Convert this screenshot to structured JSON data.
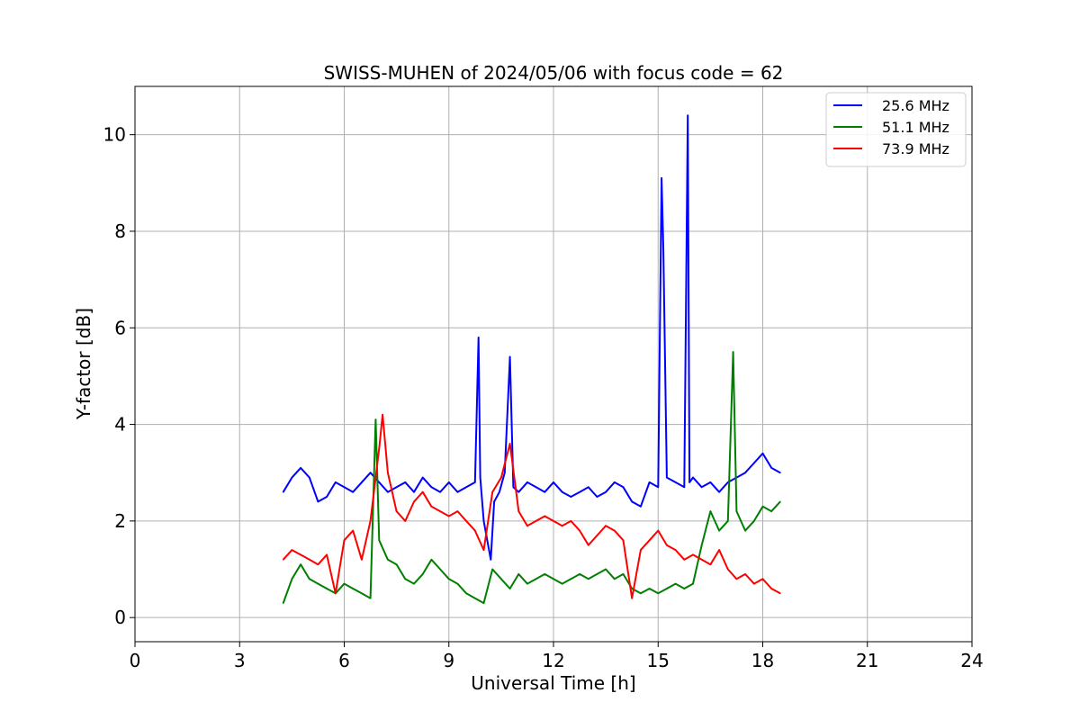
{
  "chart_data": {
    "type": "line",
    "title": "SWISS-MUHEN of 2024/05/06 with focus code = 62",
    "xlabel": "Universal Time [h]",
    "ylabel": "Y-factor [dB]",
    "xlim": [
      0,
      24
    ],
    "ylim": [
      -0.5,
      11
    ],
    "xticks": [
      0,
      3,
      6,
      9,
      12,
      15,
      18,
      21,
      24
    ],
    "yticks": [
      0,
      2,
      4,
      6,
      8,
      10
    ],
    "grid": true,
    "legend_position": "top-right",
    "series": [
      {
        "name": "25.6 MHz",
        "color": "#0000ff",
        "x": [
          4.25,
          4.5,
          4.75,
          5.0,
          5.25,
          5.5,
          5.75,
          6.0,
          6.25,
          6.5,
          6.75,
          7.0,
          7.25,
          7.5,
          7.75,
          8.0,
          8.25,
          8.5,
          8.75,
          9.0,
          9.25,
          9.5,
          9.75,
          9.85,
          9.9,
          10.0,
          10.2,
          10.3,
          10.45,
          10.6,
          10.75,
          10.85,
          11.0,
          11.25,
          11.5,
          11.75,
          12.0,
          12.25,
          12.5,
          12.75,
          13.0,
          13.25,
          13.5,
          13.75,
          14.0,
          14.25,
          14.5,
          14.75,
          15.0,
          15.1,
          15.15,
          15.25,
          15.5,
          15.75,
          15.85,
          15.9,
          16.0,
          16.25,
          16.5,
          16.75,
          17.0,
          17.25,
          17.5,
          17.75,
          18.0,
          18.25,
          18.5
        ],
        "y": [
          2.6,
          2.9,
          3.1,
          2.9,
          2.4,
          2.5,
          2.8,
          2.7,
          2.6,
          2.8,
          3.0,
          2.8,
          2.6,
          2.7,
          2.8,
          2.6,
          2.9,
          2.7,
          2.6,
          2.8,
          2.6,
          2.7,
          2.8,
          5.8,
          2.9,
          2.0,
          1.2,
          2.4,
          2.6,
          3.0,
          5.4,
          2.7,
          2.6,
          2.8,
          2.7,
          2.6,
          2.8,
          2.6,
          2.5,
          2.6,
          2.7,
          2.5,
          2.6,
          2.8,
          2.7,
          2.4,
          2.3,
          2.8,
          2.7,
          9.1,
          7.6,
          2.9,
          2.8,
          2.7,
          10.4,
          2.8,
          2.9,
          2.7,
          2.8,
          2.6,
          2.8,
          2.9,
          3.0,
          3.2,
          3.4,
          3.1,
          3.0
        ]
      },
      {
        "name": "51.1 MHz",
        "color": "#008000",
        "x": [
          4.25,
          4.5,
          4.75,
          5.0,
          5.25,
          5.5,
          5.75,
          6.0,
          6.25,
          6.5,
          6.75,
          6.9,
          7.0,
          7.25,
          7.5,
          7.75,
          8.0,
          8.25,
          8.5,
          8.75,
          9.0,
          9.25,
          9.5,
          9.75,
          10.0,
          10.25,
          10.5,
          10.75,
          11.0,
          11.25,
          11.5,
          11.75,
          12.0,
          12.25,
          12.5,
          12.75,
          13.0,
          13.25,
          13.5,
          13.75,
          14.0,
          14.25,
          14.5,
          14.75,
          15.0,
          15.25,
          15.5,
          15.75,
          16.0,
          16.25,
          16.5,
          16.75,
          17.0,
          17.15,
          17.25,
          17.5,
          17.75,
          18.0,
          18.25,
          18.5
        ],
        "y": [
          0.3,
          0.8,
          1.1,
          0.8,
          0.7,
          0.6,
          0.5,
          0.7,
          0.6,
          0.5,
          0.4,
          4.1,
          1.6,
          1.2,
          1.1,
          0.8,
          0.7,
          0.9,
          1.2,
          1.0,
          0.8,
          0.7,
          0.5,
          0.4,
          0.3,
          1.0,
          0.8,
          0.6,
          0.9,
          0.7,
          0.8,
          0.9,
          0.8,
          0.7,
          0.8,
          0.9,
          0.8,
          0.9,
          1.0,
          0.8,
          0.9,
          0.6,
          0.5,
          0.6,
          0.5,
          0.6,
          0.7,
          0.6,
          0.7,
          1.5,
          2.2,
          1.8,
          2.0,
          5.5,
          2.2,
          1.8,
          2.0,
          2.3,
          2.2,
          2.4
        ]
      },
      {
        "name": "73.9 MHz",
        "color": "#ff0000",
        "x": [
          4.25,
          4.5,
          4.75,
          5.0,
          5.25,
          5.5,
          5.75,
          6.0,
          6.25,
          6.5,
          6.75,
          7.0,
          7.1,
          7.25,
          7.5,
          7.75,
          8.0,
          8.25,
          8.5,
          8.75,
          9.0,
          9.25,
          9.5,
          9.75,
          10.0,
          10.25,
          10.5,
          10.75,
          11.0,
          11.25,
          11.5,
          11.75,
          12.0,
          12.25,
          12.5,
          12.75,
          13.0,
          13.25,
          13.5,
          13.75,
          14.0,
          14.25,
          14.5,
          14.75,
          15.0,
          15.25,
          15.5,
          15.75,
          16.0,
          16.25,
          16.5,
          16.75,
          17.0,
          17.25,
          17.5,
          17.75,
          18.0,
          18.25,
          18.5
        ],
        "y": [
          1.2,
          1.4,
          1.3,
          1.2,
          1.1,
          1.3,
          0.5,
          1.6,
          1.8,
          1.2,
          2.0,
          3.5,
          4.2,
          3.0,
          2.2,
          2.0,
          2.4,
          2.6,
          2.3,
          2.2,
          2.1,
          2.2,
          2.0,
          1.8,
          1.4,
          2.6,
          2.9,
          3.6,
          2.2,
          1.9,
          2.0,
          2.1,
          2.0,
          1.9,
          2.0,
          1.8,
          1.5,
          1.7,
          1.9,
          1.8,
          1.6,
          0.4,
          1.4,
          1.6,
          1.8,
          1.5,
          1.4,
          1.2,
          1.3,
          1.2,
          1.1,
          1.4,
          1.0,
          0.8,
          0.9,
          0.7,
          0.8,
          0.6,
          0.5
        ]
      }
    ]
  }
}
